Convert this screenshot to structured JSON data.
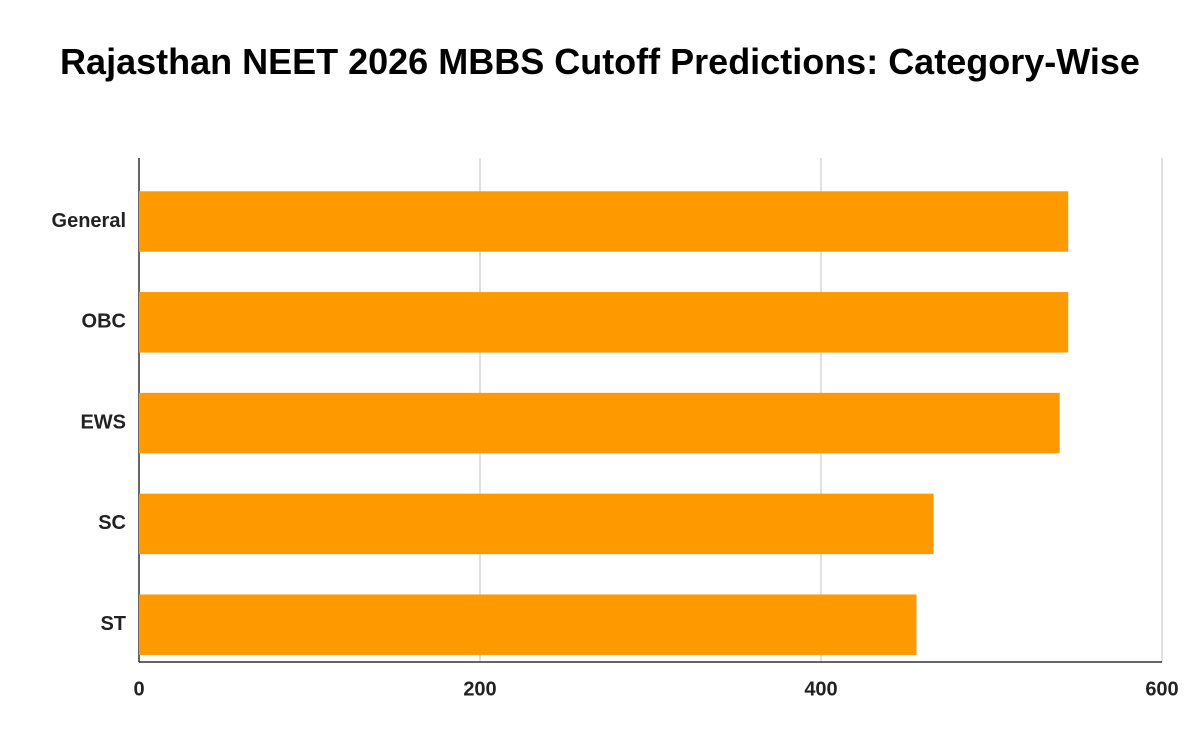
{
  "chart_data": {
    "type": "bar",
    "orientation": "horizontal",
    "title": "Rajasthan NEET 2026 MBBS Cutoff Predictions: Category-Wise",
    "categories": [
      "General",
      "OBC",
      "EWS",
      "SC",
      "ST"
    ],
    "values": [
      545,
      545,
      540,
      466,
      456
    ],
    "color": "#ff9900",
    "xlim": [
      0,
      600
    ],
    "xticks": [
      0,
      200,
      400,
      600
    ],
    "grid": true
  }
}
